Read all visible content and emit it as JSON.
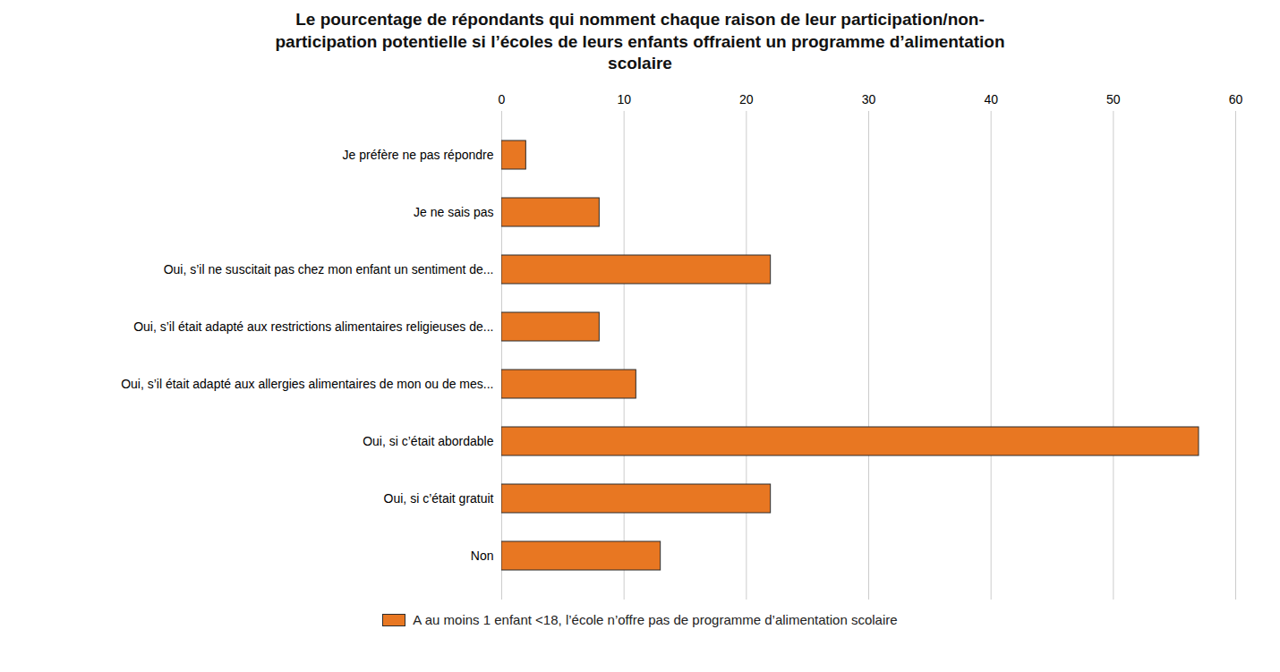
{
  "chart_data": {
    "type": "bar",
    "orientation": "horizontal",
    "title": "Le pourcentage de répondants qui nomment chaque raison de leur participation/non-\nparticipation potentielle si l’écoles de leurs enfants offraient un programme d’alimentation\nscolaire",
    "categories": [
      "Non",
      "Oui, si c’était gratuit",
      "Oui, si c’était abordable",
      "Oui, s’il était adapté aux allergies alimentaires de mon ou de mes...",
      "Oui, s’il était adapté aux restrictions alimentaires religieuses de...",
      "Oui, s’il ne suscitait pas chez mon enfant un sentiment de...",
      "Je ne sais pas",
      "Je préfère ne pas répondre"
    ],
    "series": [
      {
        "name": "A au moins 1 enfant <18, l’école n’offre pas de programme d’alimentation scolaire",
        "color": "#E87722",
        "values": [
          13,
          22,
          57,
          11,
          8,
          22,
          8,
          2
        ]
      }
    ],
    "xlim": [
      0,
      60
    ],
    "xticks": [
      0,
      10,
      20,
      30,
      40,
      50,
      60
    ],
    "grid": true,
    "legend": "bottom"
  }
}
